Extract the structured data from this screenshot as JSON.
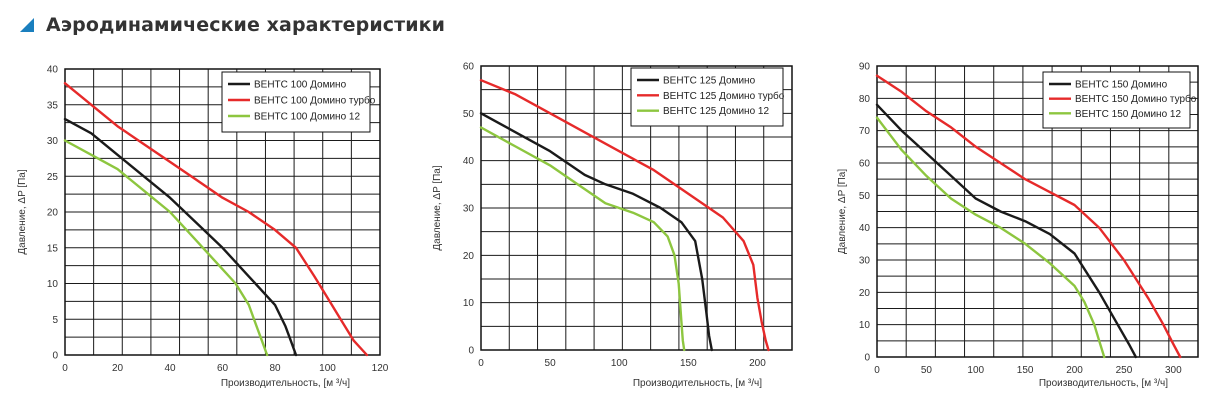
{
  "header": {
    "title": "Аэродинамические характеристики",
    "icon": "square-bullet-icon",
    "icon_color": "#1a7fbe"
  },
  "chart_data": [
    {
      "type": "line",
      "xlabel": "Производительность, [м ³/ч]",
      "ylabel": "Давление, ΔP [Па]",
      "xlim": [
        0,
        120
      ],
      "ylim": [
        0,
        40
      ],
      "xticks": [
        0,
        20,
        40,
        60,
        80,
        100,
        120
      ],
      "yticks": [
        0,
        5,
        10,
        15,
        20,
        25,
        30,
        35,
        40
      ],
      "grid": true,
      "legend_position": "top-right",
      "series": [
        {
          "name": "ВЕНТС 100 Домино",
          "color": "#1a1a1a",
          "x": [
            0,
            10,
            20,
            30,
            40,
            50,
            60,
            70,
            80,
            84,
            86,
            88
          ],
          "y": [
            33,
            31,
            28,
            25,
            22,
            18.5,
            15,
            11,
            7,
            4,
            2,
            0
          ]
        },
        {
          "name": "ВЕНТС 100 Домино турбо",
          "color": "#e62a2a",
          "x": [
            0,
            10,
            20,
            30,
            40,
            50,
            60,
            70,
            80,
            88,
            95,
            100,
            105,
            110,
            115
          ],
          "y": [
            38,
            35,
            32,
            29.5,
            27,
            24.5,
            22,
            20,
            17.5,
            15,
            11,
            8,
            5,
            2,
            0
          ]
        },
        {
          "name": "ВЕНТС 100 Домино 12",
          "color": "#8dc63f",
          "x": [
            0,
            10,
            20,
            30,
            40,
            50,
            60,
            65,
            70,
            73,
            75,
            77
          ],
          "y": [
            30,
            28,
            26,
            23,
            20,
            16,
            12,
            10,
            7,
            4,
            2,
            0
          ]
        }
      ]
    },
    {
      "type": "line",
      "xlabel": "Производительность, [м ³/ч]",
      "ylabel": "Давление, ΔP [Па]",
      "xlim": [
        0,
        225
      ],
      "ylim": [
        0,
        60
      ],
      "xticks": [
        0,
        50,
        100,
        150,
        200
      ],
      "yticks": [
        0,
        10,
        20,
        30,
        40,
        50,
        60
      ],
      "grid": true,
      "legend_position": "top-right",
      "series": [
        {
          "name": "ВЕНТС 125 Домино",
          "color": "#1a1a1a",
          "x": [
            0,
            25,
            50,
            65,
            75,
            90,
            110,
            130,
            145,
            155,
            160,
            163,
            165,
            167
          ],
          "y": [
            50,
            46,
            42,
            39,
            37,
            35,
            33,
            30,
            27,
            23,
            15,
            8,
            3,
            0
          ]
        },
        {
          "name": "ВЕНТС 125 Домино турбо",
          "color": "#e62a2a",
          "x": [
            0,
            25,
            50,
            75,
            100,
            125,
            150,
            175,
            190,
            197,
            200,
            203,
            206,
            208
          ],
          "y": [
            57,
            54,
            50,
            46,
            42,
            38,
            33,
            28,
            23,
            18,
            11,
            6,
            2,
            0
          ]
        },
        {
          "name": "ВЕНТС 125 Домино 12",
          "color": "#8dc63f",
          "x": [
            0,
            25,
            50,
            65,
            75,
            90,
            110,
            125,
            135,
            140,
            143,
            145,
            146,
            147
          ],
          "y": [
            47,
            43,
            39,
            36,
            34,
            31,
            29,
            27,
            24,
            20,
            14,
            6,
            2,
            0
          ]
        }
      ]
    },
    {
      "type": "line",
      "xlabel": "Производительность, [м ³/ч]",
      "ylabel": "Давление, ΔP [Па]",
      "xlim": [
        0,
        325
      ],
      "ylim": [
        0,
        90
      ],
      "xticks": [
        0,
        50,
        100,
        150,
        200,
        250,
        300
      ],
      "yticks": [
        0,
        10,
        20,
        30,
        40,
        50,
        60,
        70,
        80,
        90
      ],
      "grid": true,
      "legend_position": "top-right",
      "series": [
        {
          "name": "ВЕНТС 150 Домино",
          "color": "#1a1a1a",
          "x": [
            0,
            25,
            50,
            75,
            100,
            125,
            150,
            175,
            200,
            225,
            240,
            255,
            262
          ],
          "y": [
            78,
            70,
            63,
            56,
            49,
            45,
            42,
            38,
            32,
            20,
            12,
            4,
            0
          ]
        },
        {
          "name": "ВЕНТС 150 Домино турбо",
          "color": "#e62a2a",
          "x": [
            0,
            25,
            50,
            75,
            100,
            125,
            150,
            175,
            200,
            225,
            250,
            275,
            290,
            300,
            307
          ],
          "y": [
            87,
            82,
            76,
            71,
            65,
            60,
            55,
            51,
            47,
            40,
            30,
            18,
            10,
            4,
            0
          ]
        },
        {
          "name": "ВЕНТС 150 Домино 12",
          "color": "#8dc63f",
          "x": [
            0,
            25,
            50,
            75,
            100,
            125,
            150,
            175,
            200,
            210,
            220,
            225,
            228,
            230
          ],
          "y": [
            74,
            64,
            56,
            49,
            44,
            40,
            35,
            29,
            22,
            17,
            10,
            5,
            2,
            0
          ]
        }
      ]
    }
  ]
}
